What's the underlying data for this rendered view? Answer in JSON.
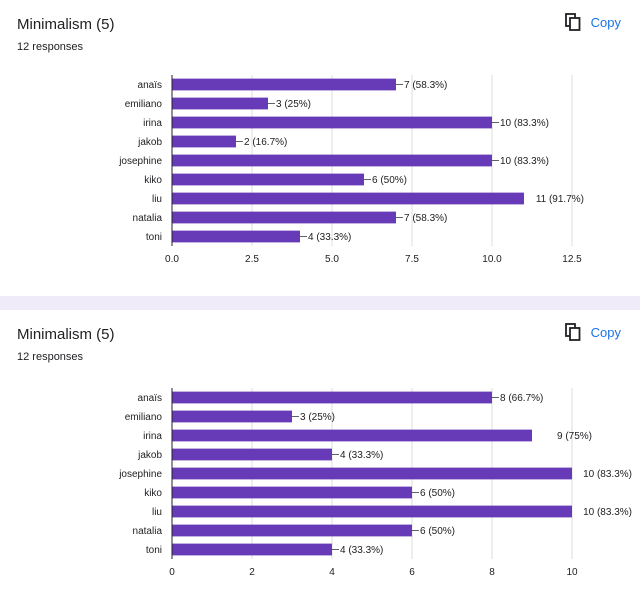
{
  "colors": {
    "bar": "#673ab7",
    "page_bg": "#f0ebf8",
    "link": "#1a73e8",
    "grid": "#dadce0",
    "axis": "#202124"
  },
  "cards": [
    {
      "title": "Minimalism (5)",
      "responses": "12 responses",
      "copy_label": "Copy",
      "copy_icon": "copy-icon"
    },
    {
      "title": "Minimalism (5)",
      "responses": "12 responses",
      "copy_label": "Copy",
      "copy_icon": "copy-icon"
    }
  ],
  "chart_data": [
    {
      "type": "bar",
      "orientation": "horizontal",
      "categories": [
        "anaïs",
        "emiliano",
        "irina",
        "jakob",
        "josephine",
        "kiko",
        "liu",
        "natalia",
        "toni"
      ],
      "values": [
        7,
        3,
        10,
        2,
        10,
        6,
        11,
        7,
        4
      ],
      "data_labels": [
        "7 (58.3%)",
        "3 (25%)",
        "10 (83.3%)",
        "2 (16.7%)",
        "10 (83.3%)",
        "6 (50%)",
        "11 (91.7%)",
        "7 (58.3%)",
        "4 (33.3%)"
      ],
      "x_ticks": [
        "0.0",
        "2.5",
        "5.0",
        "7.5",
        "10.0",
        "12.5"
      ],
      "xlim": [
        0,
        12.5
      ],
      "grid": true
    },
    {
      "type": "bar",
      "orientation": "horizontal",
      "categories": [
        "anaïs",
        "emiliano",
        "irina",
        "jakob",
        "josephine",
        "kiko",
        "liu",
        "natalia",
        "toni"
      ],
      "values": [
        8,
        3,
        9,
        4,
        10,
        6,
        10,
        6,
        4
      ],
      "data_labels": [
        "8 (66.7%)",
        "3 (25%)",
        "9 (75%)",
        "4 (33.3%)",
        "10 (83.3%)",
        "6 (50%)",
        "10 (83.3%)",
        "6 (50%)",
        "4 (33.3%)"
      ],
      "x_ticks": [
        "0",
        "2",
        "4",
        "6",
        "8",
        "10"
      ],
      "xlim": [
        0,
        10
      ],
      "grid": true
    }
  ]
}
